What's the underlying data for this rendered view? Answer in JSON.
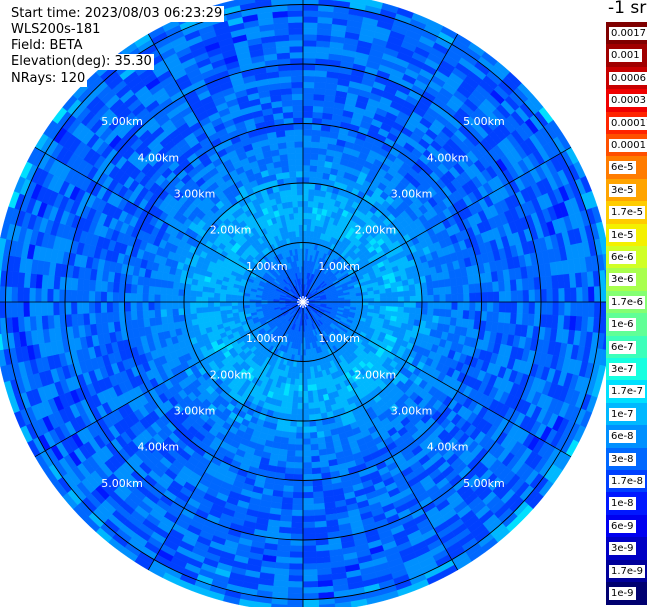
{
  "info": {
    "start_time": "Start time: 2023/08/03 06:23:29",
    "instrument": "WLS200s-181",
    "field": "Field: BETA",
    "elevation": "Elevation(deg): 35.30",
    "nrays": "NRays: 120"
  },
  "colorbar": {
    "title": "-1 sr",
    "ticks": [
      "0.0017",
      "0.001",
      "0.0006",
      "0.0003",
      "0.00017",
      "0.0001",
      "6e-5",
      "3e-5",
      "1.7e-5",
      "1e-5",
      "6e-6",
      "3e-6",
      "1.7e-6",
      "1e-6",
      "6e-7",
      "3e-7",
      "1.7e-7",
      "1e-7",
      "6e-8",
      "3e-8",
      "1.7e-8",
      "1e-8",
      "6e-9",
      "3e-9",
      "1.7e-9",
      "1e-9"
    ],
    "colors": [
      "#7f0000",
      "#a00000",
      "#c80000",
      "#f00000",
      "#ff2400",
      "#ff5000",
      "#ff7c00",
      "#ffa400",
      "#ffcc00",
      "#f4f000",
      "#d0ff26",
      "#a8ff4e",
      "#84ff72",
      "#60ff96",
      "#3cffba",
      "#16ffe0",
      "#00e0ff",
      "#00b8ff",
      "#0090ff",
      "#0068ff",
      "#0040ff",
      "#0018ff",
      "#0000f0",
      "#0000c4",
      "#00009a",
      "#000070"
    ]
  },
  "chart_data": {
    "type": "heatmap",
    "projection": "polar-ppi",
    "title": "",
    "field": "BETA",
    "unit": "-1 sr",
    "n_rays": 120,
    "range_rings_km": [
      1,
      2,
      3,
      4,
      5
    ],
    "range_ring_labels": [
      "1.00km",
      "2.00km",
      "3.00km",
      "4.00km",
      "5.00km"
    ],
    "spoke_angles_deg": [
      0,
      30,
      60,
      90,
      120,
      150,
      180,
      210,
      240,
      270,
      300,
      330
    ],
    "radial_profile": [
      {
        "range_km": 0.0,
        "value": "1.7e-8"
      },
      {
        "range_km": 0.5,
        "value": "3e-8"
      },
      {
        "range_km": 1.0,
        "value": "6e-8"
      },
      {
        "range_km": 1.5,
        "value": "1e-7"
      },
      {
        "range_km": 2.0,
        "value": "6e-8"
      },
      {
        "range_km": 3.0,
        "value": "3e-8"
      },
      {
        "range_km": 4.0,
        "value": "3e-8"
      },
      {
        "range_km": 5.0,
        "value": "3e-8"
      },
      {
        "range_km": 5.2,
        "value": "6e-8"
      }
    ]
  }
}
